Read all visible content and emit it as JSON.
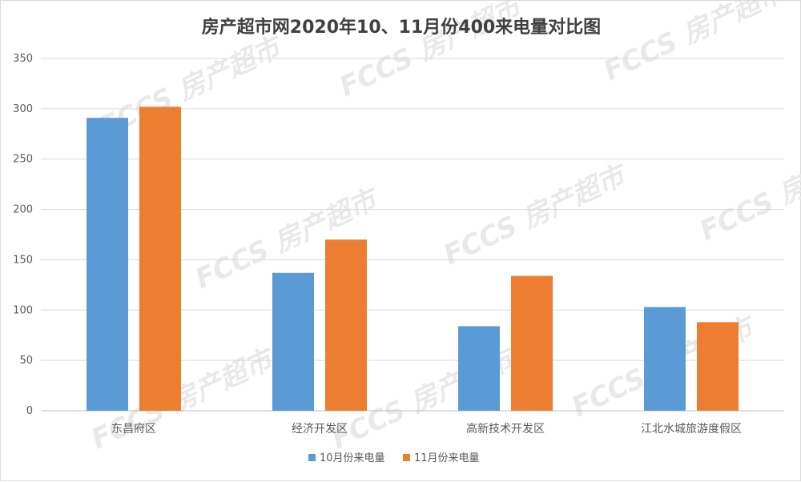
{
  "chart_data": {
    "type": "bar",
    "title": "房产超市网2020年10、11月份400来电量对比图",
    "categories": [
      "东昌府区",
      "经济开发区",
      "高新技术开发区",
      "江北水城旅游度假区"
    ],
    "series": [
      {
        "name": "10月份来电量",
        "values": [
          291,
          137,
          84,
          103
        ],
        "color": "#5b9bd5"
      },
      {
        "name": "11月份来电量",
        "values": [
          302,
          170,
          134,
          88
        ],
        "color": "#ed7d31"
      }
    ],
    "ylim": [
      0,
      350
    ],
    "yticks": [
      0,
      50,
      100,
      150,
      200,
      250,
      300,
      350
    ],
    "grid": true,
    "legend_position": "bottom"
  },
  "watermark": "FCCS 房产超市"
}
